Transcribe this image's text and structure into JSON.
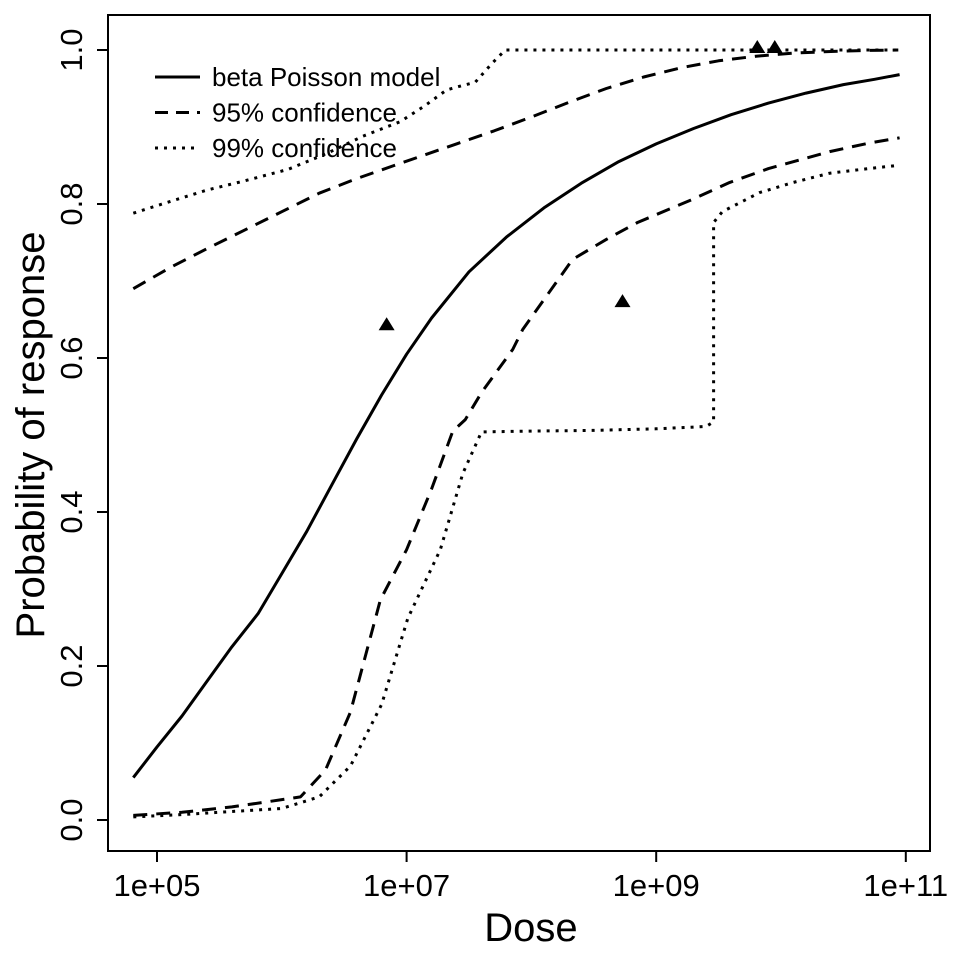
{
  "figure": {
    "background": "#ffffff",
    "foreground": "#000000"
  },
  "chart_data": {
    "type": "line",
    "title": "",
    "xlabel": "Dose",
    "ylabel": "Probability of response",
    "x_scale": "log10",
    "x_range_log10": [
      4.81,
      10.95
    ],
    "ylim": [
      0.0,
      1.0
    ],
    "grid": false,
    "frame": true,
    "line_color": "#000000",
    "x_axis": {
      "ticks": [
        {
          "log10": 5,
          "label": "1e+05"
        },
        {
          "log10": 7,
          "label": "1e+07"
        },
        {
          "log10": 9,
          "label": "1e+09"
        },
        {
          "log10": 11,
          "label": "1e+11"
        }
      ]
    },
    "y_axis": {
      "ticks": [
        {
          "value": 0.0,
          "label": "0.0"
        },
        {
          "value": 0.2,
          "label": "0.2"
        },
        {
          "value": 0.4,
          "label": "0.4"
        },
        {
          "value": 0.6,
          "label": "0.6"
        },
        {
          "value": 0.8,
          "label": "0.8"
        },
        {
          "value": 1.0,
          "label": "1.0"
        }
      ]
    },
    "legend": {
      "position": "top-left",
      "items": [
        {
          "label": "beta Poisson model",
          "style": "solid"
        },
        {
          "label": "95% confidence",
          "style": "dashed"
        },
        {
          "label": "99% confidence",
          "style": "dotted"
        }
      ]
    },
    "series": [
      {
        "name": "beta Poisson model",
        "style": "solid",
        "points": [
          [
            4.81,
            0.055
          ],
          [
            5.0,
            0.095
          ],
          [
            5.2,
            0.135
          ],
          [
            5.4,
            0.18
          ],
          [
            5.6,
            0.225
          ],
          [
            5.81,
            0.268
          ],
          [
            6.0,
            0.32
          ],
          [
            6.2,
            0.375
          ],
          [
            6.4,
            0.435
          ],
          [
            6.6,
            0.495
          ],
          [
            6.8,
            0.552
          ],
          [
            7.0,
            0.605
          ],
          [
            7.2,
            0.652
          ],
          [
            7.5,
            0.712
          ],
          [
            7.8,
            0.757
          ],
          [
            8.1,
            0.795
          ],
          [
            8.4,
            0.827
          ],
          [
            8.7,
            0.855
          ],
          [
            9.0,
            0.878
          ],
          [
            9.3,
            0.898
          ],
          [
            9.6,
            0.916
          ],
          [
            9.9,
            0.931
          ],
          [
            10.2,
            0.944
          ],
          [
            10.5,
            0.955
          ],
          [
            10.75,
            0.962
          ],
          [
            10.95,
            0.968
          ]
        ]
      },
      {
        "name": "95% confidence upper",
        "style": "dashed",
        "points": [
          [
            4.81,
            0.69
          ],
          [
            5.1,
            0.717
          ],
          [
            5.4,
            0.742
          ],
          [
            5.7,
            0.766
          ],
          [
            6.0,
            0.79
          ],
          [
            6.3,
            0.814
          ],
          [
            6.6,
            0.833
          ],
          [
            6.9,
            0.85
          ],
          [
            7.15,
            0.864
          ],
          [
            7.4,
            0.878
          ],
          [
            7.7,
            0.895
          ],
          [
            8.0,
            0.913
          ],
          [
            8.3,
            0.932
          ],
          [
            8.6,
            0.95
          ],
          [
            8.9,
            0.965
          ],
          [
            9.2,
            0.977
          ],
          [
            9.5,
            0.986
          ],
          [
            9.8,
            0.992
          ],
          [
            10.1,
            0.996
          ],
          [
            10.4,
            0.998
          ],
          [
            10.7,
            0.9995
          ],
          [
            10.94,
            1.0
          ]
        ]
      },
      {
        "name": "95% confidence lower",
        "style": "dashed",
        "points": [
          [
            4.81,
            0.006
          ],
          [
            5.2,
            0.01
          ],
          [
            5.6,
            0.017
          ],
          [
            5.9,
            0.024
          ],
          [
            6.15,
            0.03
          ],
          [
            6.35,
            0.065
          ],
          [
            6.55,
            0.14
          ],
          [
            6.79,
            0.286
          ],
          [
            7.0,
            0.351
          ],
          [
            7.2,
            0.43
          ],
          [
            7.37,
            0.505
          ],
          [
            7.47,
            0.52
          ],
          [
            7.6,
            0.555
          ],
          [
            7.85,
            0.611
          ],
          [
            7.93,
            0.637
          ],
          [
            8.33,
            0.728
          ],
          [
            8.6,
            0.754
          ],
          [
            8.85,
            0.776
          ],
          [
            9.29,
            0.806
          ],
          [
            9.59,
            0.828
          ],
          [
            9.9,
            0.846
          ],
          [
            10.39,
            0.868
          ],
          [
            10.7,
            0.879
          ],
          [
            10.95,
            0.886
          ]
        ]
      },
      {
        "name": "99% confidence upper",
        "style": "dotted",
        "points": [
          [
            4.81,
            0.788
          ],
          [
            5.1,
            0.803
          ],
          [
            5.4,
            0.818
          ],
          [
            5.7,
            0.83
          ],
          [
            6.05,
            0.845
          ],
          [
            6.35,
            0.865
          ],
          [
            6.65,
            0.888
          ],
          [
            6.95,
            0.907
          ],
          [
            7.15,
            0.928
          ],
          [
            7.32,
            0.948
          ],
          [
            7.45,
            0.954
          ],
          [
            7.55,
            0.958
          ],
          [
            7.68,
            0.982
          ],
          [
            7.79,
            1.0
          ],
          [
            10.93,
            1.0
          ]
        ]
      },
      {
        "name": "99% confidence lower",
        "style": "dotted",
        "points": [
          [
            4.81,
            0.004
          ],
          [
            5.2,
            0.007
          ],
          [
            5.6,
            0.011
          ],
          [
            6.0,
            0.015
          ],
          [
            6.3,
            0.03
          ],
          [
            6.55,
            0.07
          ],
          [
            6.8,
            0.15
          ],
          [
            7.01,
            0.262
          ],
          [
            7.27,
            0.351
          ],
          [
            7.45,
            0.45
          ],
          [
            7.6,
            0.504
          ],
          [
            8.0,
            0.505
          ],
          [
            8.5,
            0.506
          ],
          [
            9.0,
            0.508
          ],
          [
            9.4,
            0.511
          ],
          [
            9.46,
            0.517
          ],
          [
            9.46,
            0.776
          ],
          [
            9.53,
            0.79
          ],
          [
            9.83,
            0.815
          ],
          [
            10.1,
            0.828
          ],
          [
            10.39,
            0.84
          ],
          [
            10.7,
            0.846
          ],
          [
            10.93,
            0.85
          ]
        ]
      }
    ],
    "observed_points": {
      "marker": "filled-triangle",
      "points": [
        {
          "log10_dose": 6.84,
          "probability": 0.64
        },
        {
          "log10_dose": 8.73,
          "probability": 0.67
        },
        {
          "log10_dose": 9.81,
          "probability": 1.0
        },
        {
          "log10_dose": 9.95,
          "probability": 1.0
        }
      ]
    }
  }
}
